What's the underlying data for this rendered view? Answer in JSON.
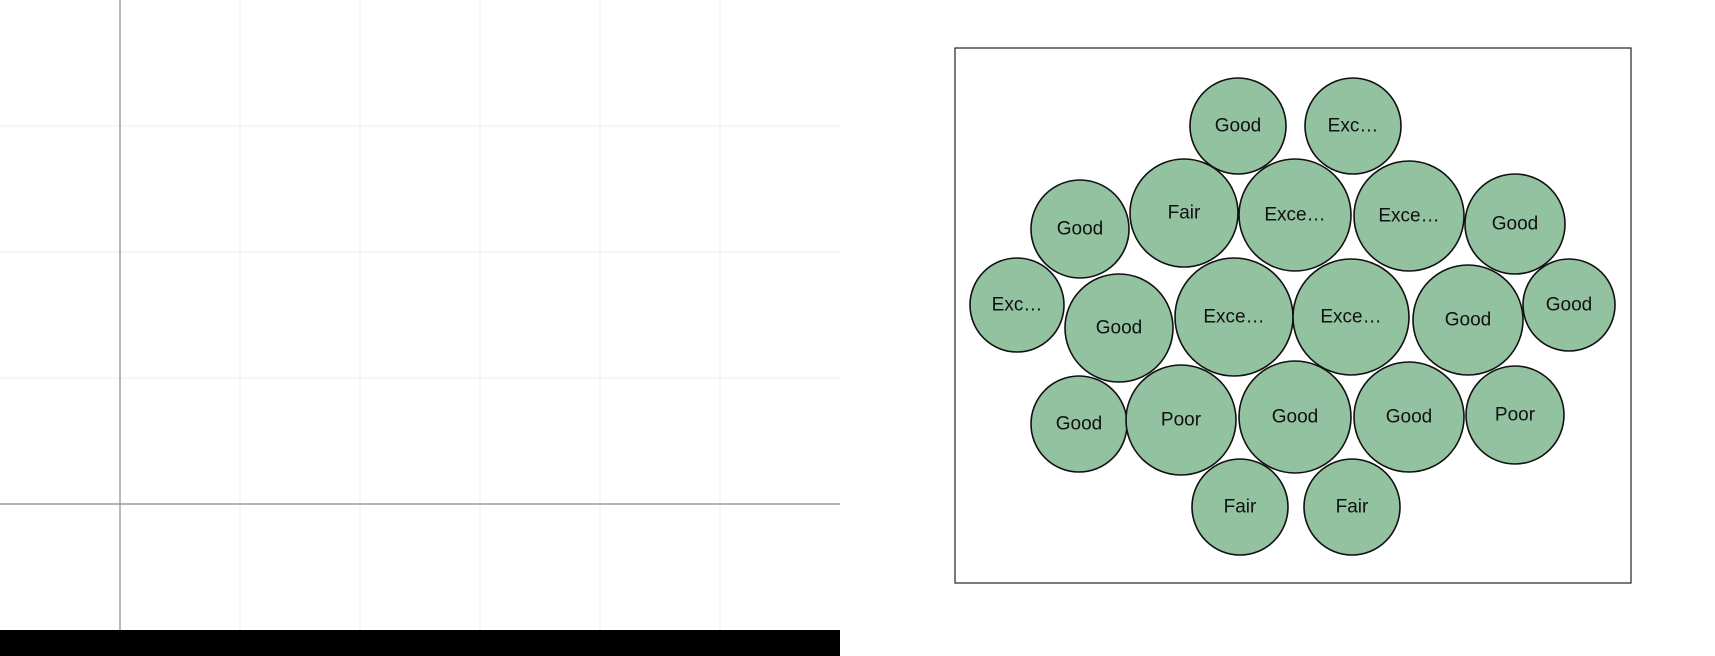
{
  "colors": {
    "bubble_fill": "#93c2a1",
    "bubble_stroke": "#111111",
    "frame_stroke": "#222222",
    "grid_minor": "#ececec",
    "grid_major": "#888888",
    "bottom_bar": "#000000"
  },
  "chart_data": [
    {
      "type": "grid",
      "title": "",
      "xlabel": "",
      "ylabel": "",
      "grid": true,
      "series": []
    },
    {
      "type": "bubble-pack",
      "title": "",
      "grid": false,
      "legend": "none",
      "bubbles": [
        {
          "label": "Good",
          "size": 0.96
        },
        {
          "label": "Exc…",
          "size": 0.96
        },
        {
          "label": "Good",
          "size": 0.98
        },
        {
          "label": "Fair",
          "size": 1.08
        },
        {
          "label": "Exce…",
          "size": 1.12
        },
        {
          "label": "Exce…",
          "size": 1.1
        },
        {
          "label": "Good",
          "size": 1.0
        },
        {
          "label": "Exc…",
          "size": 0.94
        },
        {
          "label": "Good",
          "size": 1.08
        },
        {
          "label": "Exce…",
          "size": 1.18
        },
        {
          "label": "Exce…",
          "size": 1.16
        },
        {
          "label": "Good",
          "size": 1.1
        },
        {
          "label": "Good",
          "size": 0.92
        },
        {
          "label": "Good",
          "size": 0.96
        },
        {
          "label": "Poor",
          "size": 1.1
        },
        {
          "label": "Good",
          "size": 1.12
        },
        {
          "label": "Good",
          "size": 1.1
        },
        {
          "label": "Poor",
          "size": 0.98
        },
        {
          "label": "Fair",
          "size": 0.96
        },
        {
          "label": "Fair",
          "size": 0.96
        }
      ]
    }
  ]
}
